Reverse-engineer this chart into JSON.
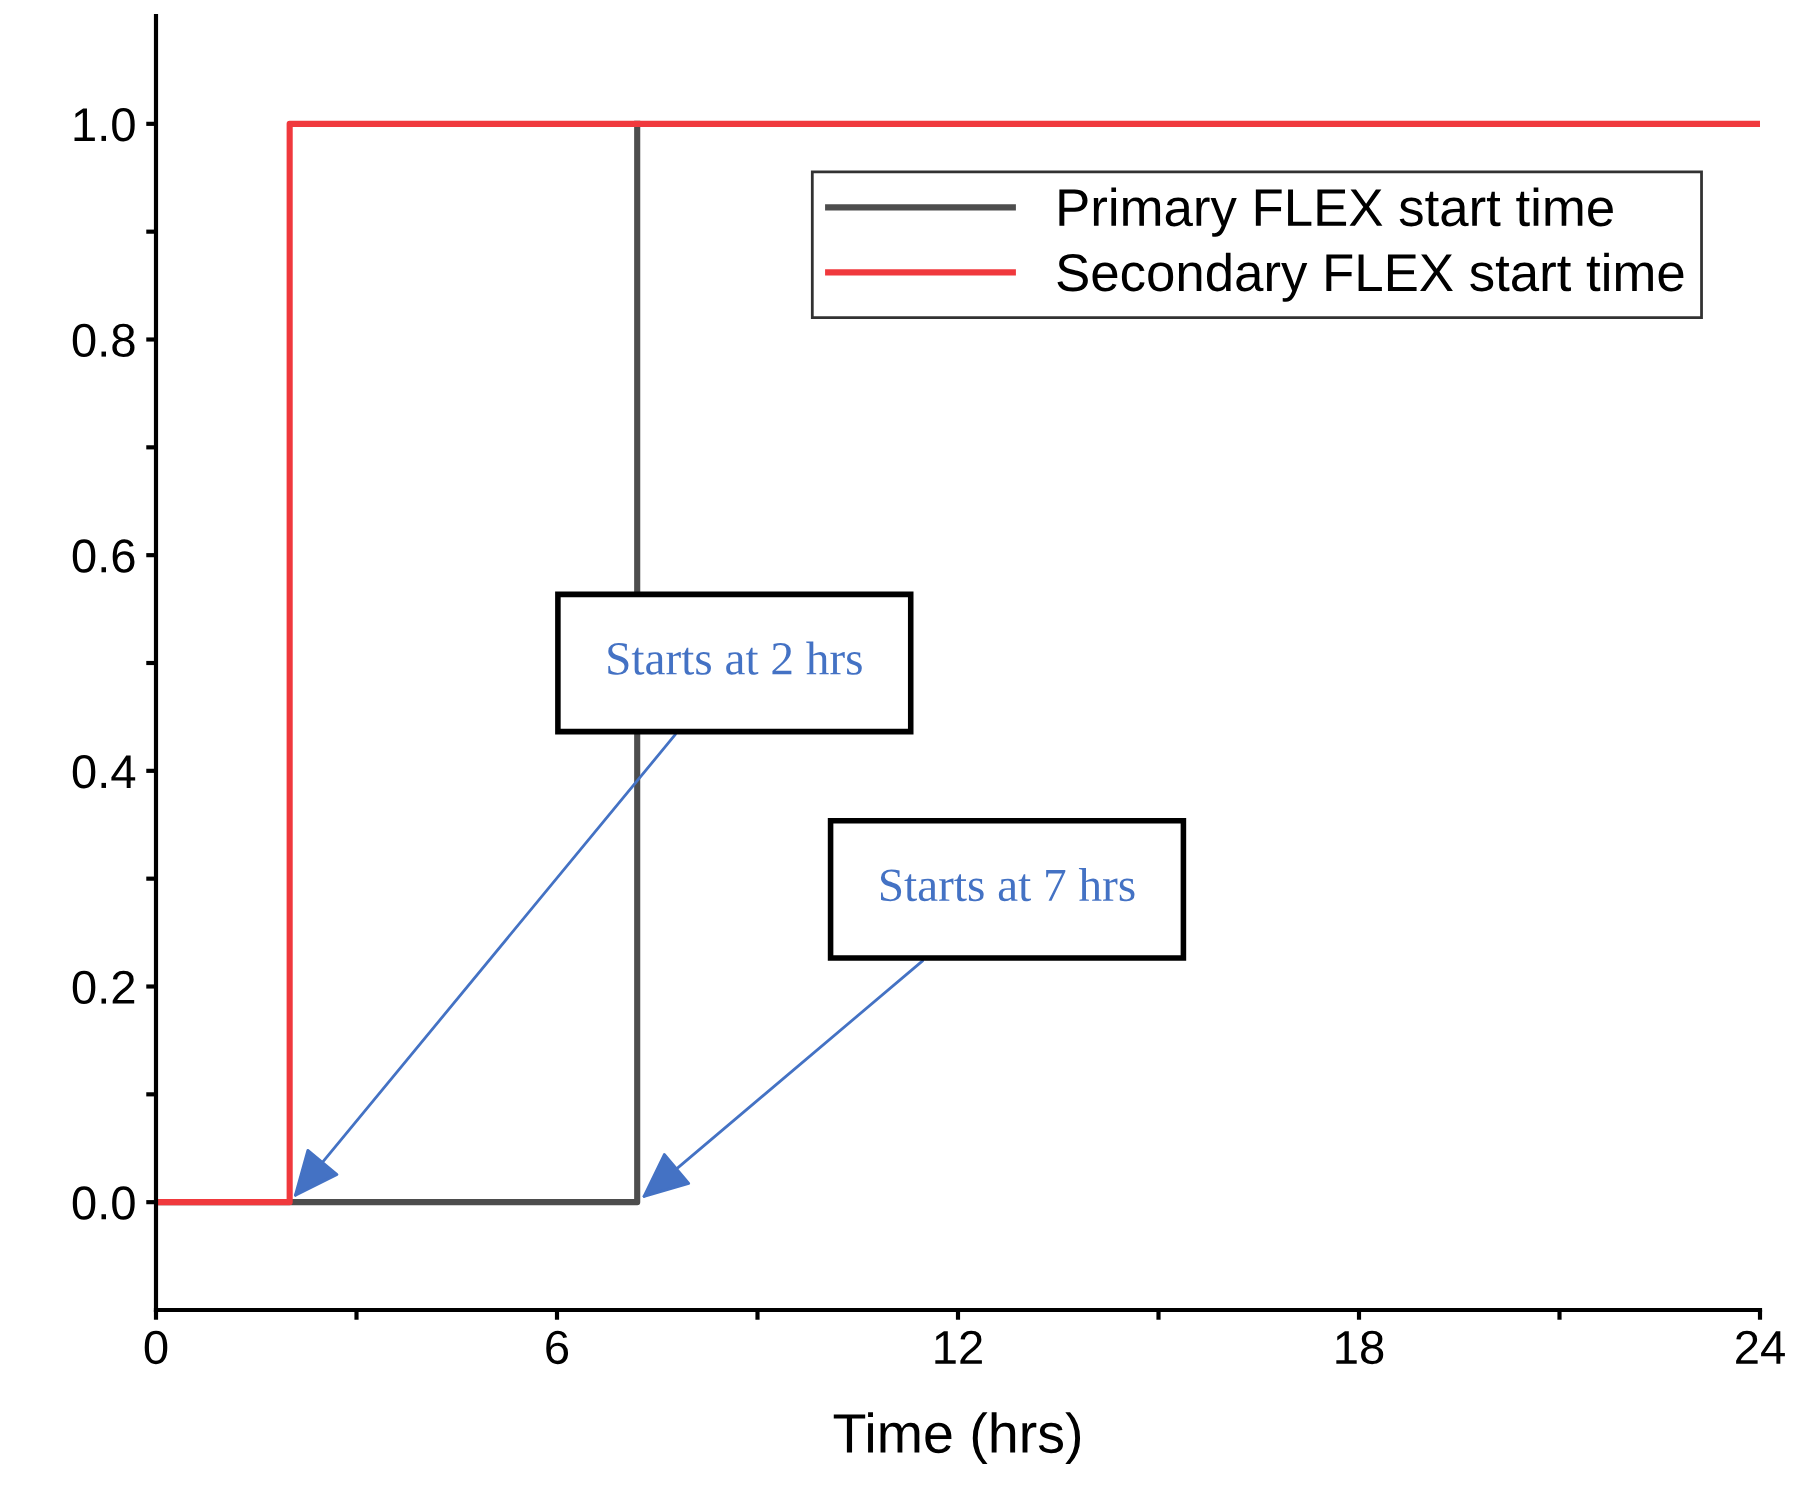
{
  "chart_data": {
    "type": "line",
    "xlabel": "Time (hrs)",
    "series": [
      {
        "name": "Primary FLEX start time",
        "color": "#4d4d4d",
        "x": [
          0,
          7.2,
          7.2
        ],
        "values": [
          0,
          0,
          1
        ]
      },
      {
        "name": "Secondary FLEX start time",
        "color": "#f0393d",
        "x": [
          0,
          2,
          2,
          24
        ],
        "values": [
          0,
          0,
          1,
          1
        ]
      }
    ],
    "xlim": [
      0,
      24
    ],
    "xticks": [
      0,
      {
        "value": 3,
        "label": null
      },
      6,
      {
        "value": 9,
        "label": null
      },
      12,
      {
        "value": 15,
        "label": null
      },
      18,
      {
        "value": 21,
        "label": null
      },
      24
    ],
    "ylim": [
      -0.1,
      1.1
    ],
    "yticks": [
      {
        "value": 0,
        "label": "0.0"
      },
      {
        "value": 0.1,
        "label": null
      },
      {
        "value": 0.2,
        "label": "0.2"
      },
      {
        "value": 0.3,
        "label": null
      },
      {
        "value": 0.4,
        "label": "0.4"
      },
      {
        "value": 0.5,
        "label": null
      },
      {
        "value": 0.6,
        "label": "0.6"
      },
      {
        "value": 0.7,
        "label": null
      },
      {
        "value": 0.8,
        "label": "0.8"
      },
      {
        "value": 0.9,
        "label": null
      },
      {
        "value": 1.0,
        "label": "1.0"
      }
    ],
    "annotations": [
      {
        "text": "Starts at 2 hrs",
        "x": 2,
        "y": 0
      },
      {
        "text": "Starts at 7 hrs",
        "x": 7.2,
        "y": 0
      }
    ],
    "legend": "top right",
    "grid": false,
    "marker": "none",
    "line_style": "solid"
  }
}
